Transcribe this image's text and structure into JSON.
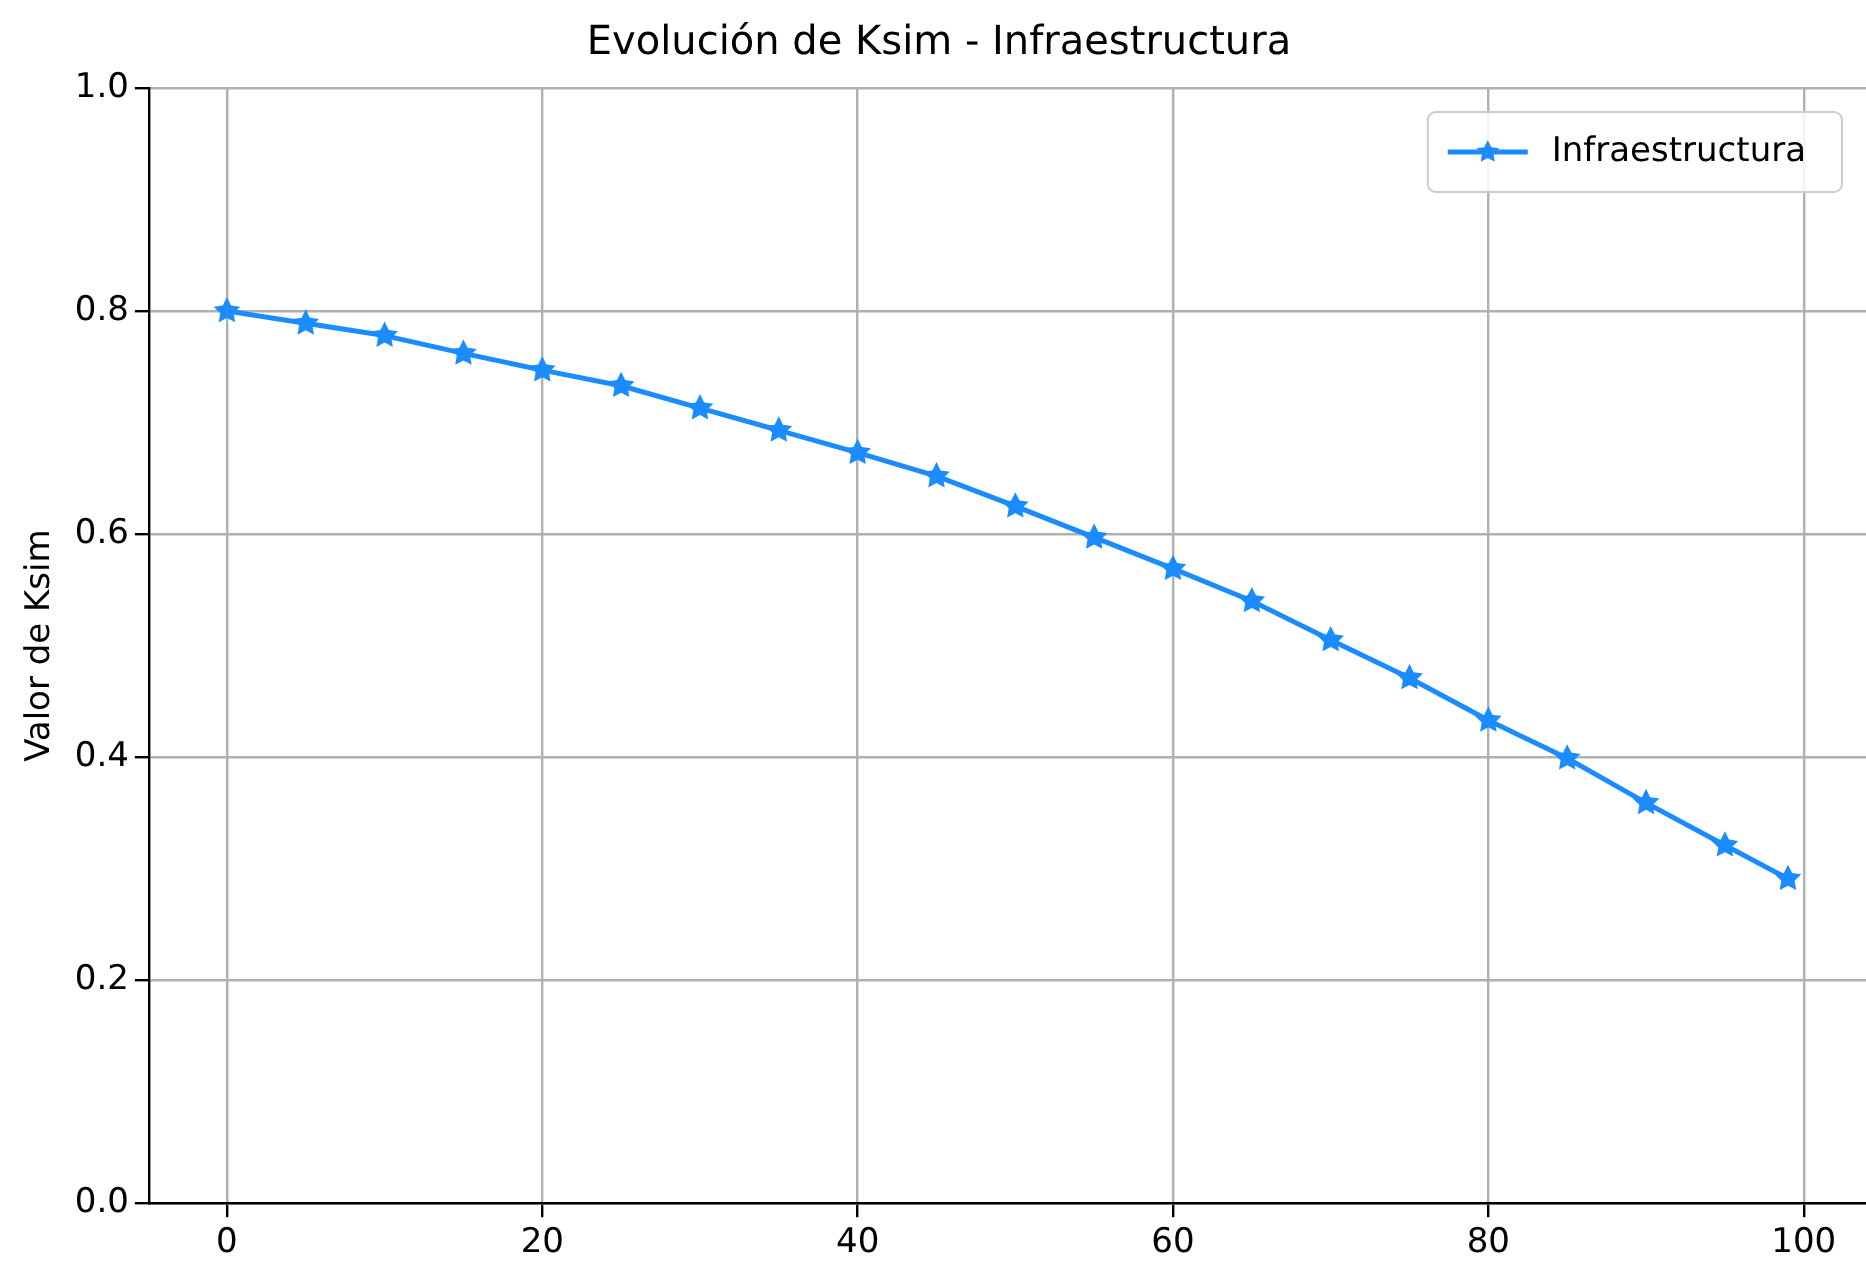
{
  "chart_data": {
    "type": "line",
    "title": "Evolución de Ksim - Infraestructura",
    "ylabel": "Valor de Ksim",
    "x": [
      0,
      5,
      10,
      15,
      20,
      25,
      30,
      35,
      40,
      45,
      50,
      55,
      60,
      65,
      70,
      75,
      80,
      85,
      90,
      95,
      99
    ],
    "series": [
      {
        "name": "Infraestructura",
        "color": "#1a8cff",
        "values": [
          0.8,
          0.789,
          0.778,
          0.762,
          0.747,
          0.733,
          0.713,
          0.693,
          0.673,
          0.652,
          0.625,
          0.597,
          0.569,
          0.54,
          0.505,
          0.471,
          0.433,
          0.399,
          0.359,
          0.321,
          0.291
        ]
      }
    ],
    "xlim": [
      -4.95,
      103.95
    ],
    "xticks": [
      0,
      20,
      40,
      60,
      80,
      100
    ],
    "ylim": [
      0,
      1
    ],
    "yticks": [
      {
        "value": 0,
        "label": "0.0"
      },
      0.2,
      0.4,
      0.6,
      0.8,
      {
        "value": 1,
        "label": "1.0"
      }
    ],
    "grid": true,
    "legend": "top right",
    "marker": "star",
    "line_style": "solid"
  }
}
